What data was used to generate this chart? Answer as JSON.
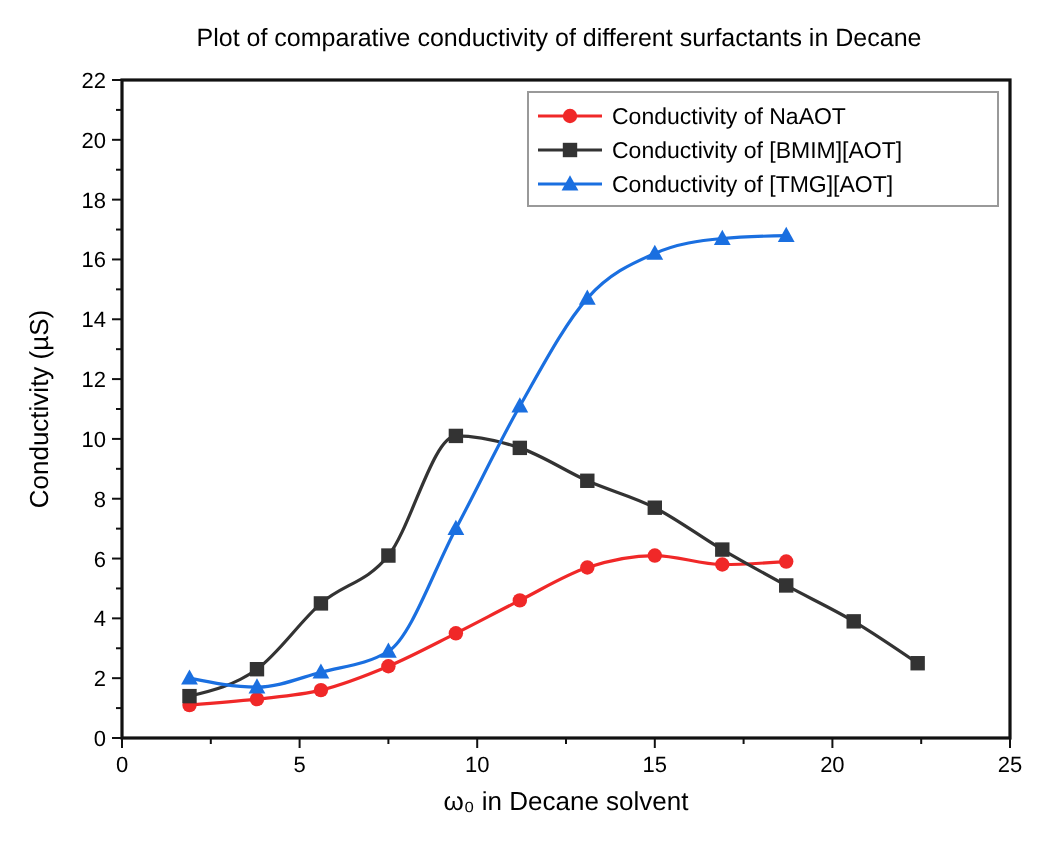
{
  "chart_data": {
    "type": "line",
    "title": "Plot of comparative conductivity of different surfactants in Decane",
    "xlabel": "ω₀ in Decane solvent",
    "ylabel": "Conductivity (µS)",
    "xlim": [
      0,
      25
    ],
    "xticks": [
      0,
      5,
      10,
      15,
      20,
      25
    ],
    "ylim": [
      0,
      22
    ],
    "yticks": [
      0,
      2,
      4,
      6,
      8,
      10,
      12,
      14,
      16,
      18,
      20,
      22
    ],
    "grid": false,
    "legend": "top right",
    "line_style": "solid",
    "series": [
      {
        "name": "Conductivity of NaAOT",
        "color": "#f02828",
        "marker": "circle",
        "x": [
          1.9,
          3.8,
          5.6,
          7.5,
          9.4,
          11.2,
          13.1,
          15,
          16.9,
          18.7
        ],
        "values": [
          1.1,
          1.3,
          1.6,
          2.4,
          3.5,
          4.6,
          5.7,
          6.1,
          5.8,
          5.9
        ]
      },
      {
        "name": "Conductivity of [BMIM][AOT]",
        "color": "#333333",
        "marker": "square",
        "x": [
          1.9,
          3.8,
          5.6,
          7.5,
          9.4,
          11.2,
          13.1,
          15,
          16.9,
          18.7,
          20.6,
          22.4
        ],
        "values": [
          1.4,
          2.3,
          4.5,
          6.1,
          10.1,
          9.7,
          8.6,
          7.7,
          6.3,
          5.1,
          3.9,
          2.5
        ]
      },
      {
        "name": "Conductivity of [TMG][AOT]",
        "color": "#1a6fe0",
        "marker": "triangle",
        "x": [
          1.9,
          3.8,
          5.6,
          7.5,
          9.4,
          11.2,
          13.1,
          15,
          16.9,
          18.7
        ],
        "values": [
          2.0,
          1.7,
          2.2,
          2.9,
          7.0,
          11.1,
          14.7,
          16.2,
          16.7,
          16.8
        ]
      }
    ]
  }
}
